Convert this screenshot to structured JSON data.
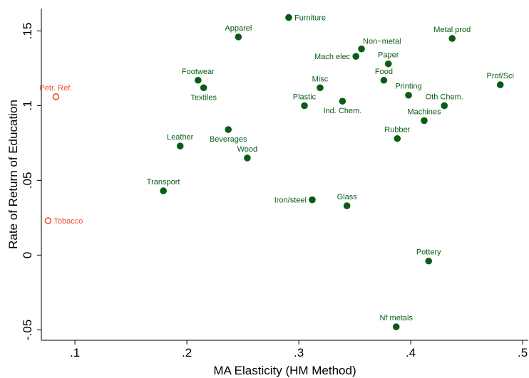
{
  "chart_data": {
    "type": "scatter",
    "xlabel": "MA Elasticity (HM Method)",
    "ylabel": "Rate of Return of Education",
    "xlim": [
      0.07,
      0.505
    ],
    "ylim": [
      -0.057,
      0.165
    ],
    "xticks": [
      ".1",
      ".2",
      ".3",
      ".4",
      ".5"
    ],
    "xtick_values": [
      0.1,
      0.2,
      0.3,
      0.4,
      0.5
    ],
    "yticks": [
      "-.05",
      "0",
      ".05",
      ".1",
      ".15"
    ],
    "ytick_values": [
      -0.05,
      0,
      0.05,
      0.1,
      0.15
    ],
    "grid": false,
    "colors": {
      "filled": "#0a5c12",
      "label_filled": "#0a5c12",
      "hollow": "#e8532b"
    },
    "points": [
      {
        "label": "Furniture",
        "x": 0.291,
        "y": 0.159,
        "style": "filled",
        "pos": "right"
      },
      {
        "label": "Apparel",
        "x": 0.246,
        "y": 0.146,
        "style": "filled",
        "pos": "above"
      },
      {
        "label": "Metal prod",
        "x": 0.437,
        "y": 0.145,
        "style": "filled",
        "pos": "above"
      },
      {
        "label": "Non−metal",
        "x": 0.356,
        "y": 0.138,
        "style": "filled",
        "pos": "above-right"
      },
      {
        "label": "Mach elec",
        "x": 0.351,
        "y": 0.133,
        "style": "filled",
        "pos": "left"
      },
      {
        "label": "Paper",
        "x": 0.38,
        "y": 0.128,
        "style": "filled",
        "pos": "above"
      },
      {
        "label": "Footwear",
        "x": 0.21,
        "y": 0.117,
        "style": "filled",
        "pos": "above"
      },
      {
        "label": "Textiles",
        "x": 0.215,
        "y": 0.112,
        "style": "filled",
        "pos": "below"
      },
      {
        "label": "Food",
        "x": 0.376,
        "y": 0.117,
        "style": "filled",
        "pos": "above"
      },
      {
        "label": "Prof/Sci",
        "x": 0.48,
        "y": 0.114,
        "style": "filled",
        "pos": "above"
      },
      {
        "label": "Misc",
        "x": 0.319,
        "y": 0.112,
        "style": "filled",
        "pos": "above"
      },
      {
        "label": "Printing",
        "x": 0.398,
        "y": 0.107,
        "style": "filled",
        "pos": "above"
      },
      {
        "label": "Plastic",
        "x": 0.305,
        "y": 0.1,
        "style": "filled",
        "pos": "above"
      },
      {
        "label": "Ind. Chem.",
        "x": 0.339,
        "y": 0.103,
        "style": "filled",
        "pos": "below"
      },
      {
        "label": "Oth Chem.",
        "x": 0.43,
        "y": 0.1,
        "style": "filled",
        "pos": "above"
      },
      {
        "label": "Machines",
        "x": 0.412,
        "y": 0.09,
        "style": "filled",
        "pos": "above"
      },
      {
        "label": "Beverages",
        "x": 0.237,
        "y": 0.084,
        "style": "filled",
        "pos": "below"
      },
      {
        "label": "Rubber",
        "x": 0.388,
        "y": 0.078,
        "style": "filled",
        "pos": "above"
      },
      {
        "label": "Leather",
        "x": 0.194,
        "y": 0.073,
        "style": "filled",
        "pos": "above"
      },
      {
        "label": "Wood",
        "x": 0.254,
        "y": 0.065,
        "style": "filled",
        "pos": "above"
      },
      {
        "label": "Transport",
        "x": 0.179,
        "y": 0.043,
        "style": "filled",
        "pos": "above"
      },
      {
        "label": "Iron/steel",
        "x": 0.312,
        "y": 0.037,
        "style": "filled",
        "pos": "left"
      },
      {
        "label": "Glass",
        "x": 0.343,
        "y": 0.033,
        "style": "filled",
        "pos": "above"
      },
      {
        "label": "Pottery",
        "x": 0.416,
        "y": -0.004,
        "style": "filled",
        "pos": "above"
      },
      {
        "label": "Nf metals",
        "x": 0.387,
        "y": -0.048,
        "style": "filled",
        "pos": "above"
      },
      {
        "label": "Petr. Ref.",
        "x": 0.083,
        "y": 0.106,
        "style": "hollow",
        "pos": "above"
      },
      {
        "label": "Tobacco",
        "x": 0.076,
        "y": 0.023,
        "style": "hollow",
        "pos": "right"
      }
    ]
  }
}
